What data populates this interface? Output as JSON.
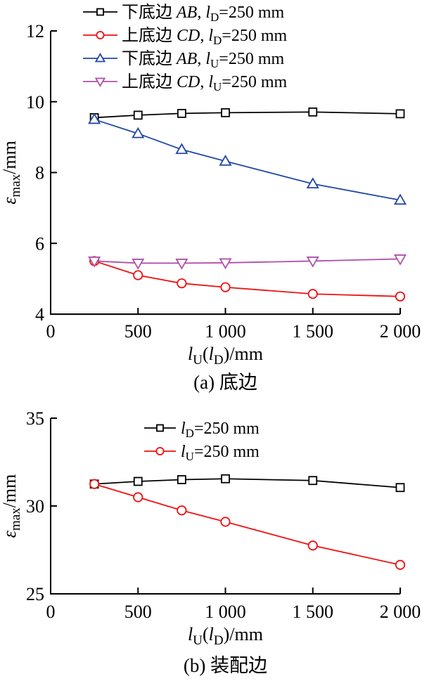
{
  "figure": {
    "background": "#ffffff",
    "axis_color": "#000000"
  },
  "chart_data": [
    {
      "id": "a",
      "type": "line",
      "caption": "(a) 底边",
      "xlabel_text": "lU(lD)/mm",
      "xlabel_parts": [
        [
          "l",
          "i"
        ],
        [
          "U",
          "sub"
        ],
        [
          "(",
          ""
        ],
        [
          "l",
          "i"
        ],
        [
          "D",
          "sub"
        ],
        [
          ")/mm",
          ""
        ]
      ],
      "ylabel_text": "εmax/mm",
      "ylabel_parts": [
        [
          "ε",
          "i"
        ],
        [
          "max",
          "sub"
        ],
        [
          "/mm",
          ""
        ]
      ],
      "xlim": [
        0,
        2000
      ],
      "ylim": [
        4,
        12
      ],
      "xticks": [
        {
          "v": 0,
          "label": "0"
        },
        {
          "v": 500,
          "label": "500"
        },
        {
          "v": 1000,
          "label": "1 000"
        },
        {
          "v": 1500,
          "label": "1 500"
        },
        {
          "v": 2000,
          "label": "2 000"
        }
      ],
      "yticks": [
        {
          "v": 4,
          "label": "4"
        },
        {
          "v": 6,
          "label": "6"
        },
        {
          "v": 8,
          "label": "8"
        },
        {
          "v": 10,
          "label": "10"
        },
        {
          "v": 12,
          "label": "12"
        }
      ],
      "grid": false,
      "legend_position": "top-left-overlay",
      "x": [
        250,
        500,
        750,
        1000,
        1500,
        2000
      ],
      "series": [
        {
          "name": "下底边 AB, lD=250 mm",
          "label_parts": [
            [
              "下底边 ",
              ""
            ],
            [
              "AB",
              "i"
            ],
            [
              ", ",
              ""
            ],
            [
              "l",
              "i"
            ],
            [
              "D",
              "sub"
            ],
            [
              "=250 mm",
              ""
            ]
          ],
          "color": "#000000",
          "marker": "square",
          "values": [
            9.55,
            9.62,
            9.67,
            9.69,
            9.71,
            9.66
          ]
        },
        {
          "name": "上底边 CD, lD=250 mm",
          "label_parts": [
            [
              "上底边 ",
              ""
            ],
            [
              "CD",
              "i"
            ],
            [
              ", ",
              ""
            ],
            [
              "l",
              "i"
            ],
            [
              "D",
              "sub"
            ],
            [
              "=250 mm",
              ""
            ]
          ],
          "color": "#ee1111",
          "marker": "circle",
          "values": [
            5.5,
            5.1,
            4.87,
            4.76,
            4.57,
            4.5
          ]
        },
        {
          "name": "下底边 AB, lU=250 mm",
          "label_parts": [
            [
              "下底边 ",
              ""
            ],
            [
              "AB",
              "i"
            ],
            [
              ", ",
              ""
            ],
            [
              "l",
              "i"
            ],
            [
              "U",
              "sub"
            ],
            [
              "=250 mm",
              ""
            ]
          ],
          "color": "#2148a6",
          "marker": "triangle-up",
          "values": [
            9.5,
            9.1,
            8.65,
            8.32,
            7.68,
            7.22
          ]
        },
        {
          "name": "上底边 CD, lU=250 mm",
          "label_parts": [
            [
              "上底边 ",
              ""
            ],
            [
              "CD",
              "i"
            ],
            [
              ", ",
              ""
            ],
            [
              "l",
              "i"
            ],
            [
              "U",
              "sub"
            ],
            [
              "=250 mm",
              ""
            ]
          ],
          "color": "#b051a8",
          "marker": "triangle-down",
          "values": [
            5.5,
            5.44,
            5.44,
            5.45,
            5.5,
            5.56
          ]
        }
      ]
    },
    {
      "id": "b",
      "type": "line",
      "caption": "(b) 装配边",
      "xlabel_text": "lU(lD)/mm",
      "xlabel_parts": [
        [
          "l",
          "i"
        ],
        [
          "U",
          "sub"
        ],
        [
          "(",
          ""
        ],
        [
          "l",
          "i"
        ],
        [
          "D",
          "sub"
        ],
        [
          ")/mm",
          ""
        ]
      ],
      "ylabel_text": "εmax/mm",
      "ylabel_parts": [
        [
          "ε",
          "i"
        ],
        [
          "max",
          "sub"
        ],
        [
          "/mm",
          ""
        ]
      ],
      "xlim": [
        0,
        2000
      ],
      "ylim": [
        25,
        35
      ],
      "xticks": [
        {
          "v": 0,
          "label": "0"
        },
        {
          "v": 500,
          "label": "500"
        },
        {
          "v": 1000,
          "label": "1 000"
        },
        {
          "v": 1500,
          "label": "1 500"
        },
        {
          "v": 2000,
          "label": "2 000"
        }
      ],
      "yticks": [
        {
          "v": 25,
          "label": "25"
        },
        {
          "v": 30,
          "label": "30"
        },
        {
          "v": 35,
          "label": "35"
        }
      ],
      "grid": false,
      "legend_position": "top-center-inside",
      "x": [
        250,
        500,
        750,
        1000,
        1500,
        2000
      ],
      "series": [
        {
          "name": "lD=250 mm",
          "label_parts": [
            [
              "l",
              "i"
            ],
            [
              "D",
              "sub"
            ],
            [
              "=250 mm",
              ""
            ]
          ],
          "color": "#000000",
          "marker": "square",
          "values": [
            31.25,
            31.4,
            31.5,
            31.55,
            31.45,
            31.05
          ]
        },
        {
          "name": "lU=250 mm",
          "label_parts": [
            [
              "l",
              "i"
            ],
            [
              "U",
              "sub"
            ],
            [
              "=250 mm",
              ""
            ]
          ],
          "color": "#ee1111",
          "marker": "circle",
          "values": [
            31.25,
            30.5,
            29.75,
            29.1,
            27.75,
            26.65
          ]
        }
      ]
    }
  ]
}
